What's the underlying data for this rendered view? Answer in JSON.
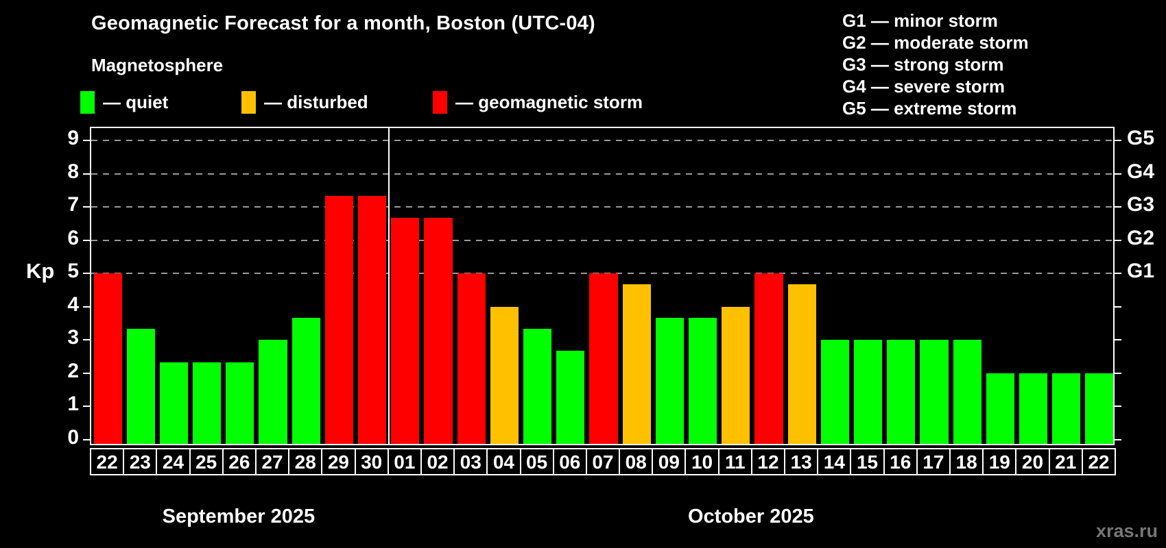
{
  "header": {
    "title": "Geomagnetic Forecast for a month, Boston (UTC-04)",
    "subtitle": "Magnetosphere"
  },
  "colors": {
    "quiet": "#00ff00",
    "disturbed": "#ffc000",
    "storm": "#ff0000",
    "background": "#000000",
    "text": "#ffffff",
    "gridline": "#9a9a9a",
    "watermark": "#777777"
  },
  "legend": {
    "quiet": "— quiet",
    "disturbed": "— disturbed",
    "storm": "— geomagnetic storm"
  },
  "storm_scale_legend": [
    "G1 — minor storm",
    "G2 — moderate storm",
    "G3 — strong storm",
    "G4 — severe storm",
    "G5 — extreme storm"
  ],
  "watermark": "xras.ru",
  "chart_data": {
    "type": "bar",
    "title": "Geomagnetic Forecast for a month, Boston (UTC-04)",
    "ylabel": "Kp",
    "ylim": [
      0,
      9
    ],
    "yticks": [
      0,
      1,
      2,
      3,
      4,
      5,
      6,
      7,
      8,
      9
    ],
    "gridlines_at": [
      5,
      6,
      7,
      8,
      9
    ],
    "grid": "dashed horizontal at G-storm levels only",
    "legend_position": "top-left",
    "right_axis": [
      {
        "kp": 5,
        "label": "G1"
      },
      {
        "kp": 6,
        "label": "G2"
      },
      {
        "kp": 7,
        "label": "G3"
      },
      {
        "kp": 8,
        "label": "G4"
      },
      {
        "kp": 9,
        "label": "G5"
      }
    ],
    "months": [
      {
        "label": "September 2025",
        "days": 9
      },
      {
        "label": "October 2025",
        "days": 22
      }
    ],
    "bars": [
      {
        "day": "22",
        "month": "September 2025",
        "kp": 5.0,
        "status": "storm"
      },
      {
        "day": "23",
        "month": "September 2025",
        "kp": 3.33,
        "status": "quiet"
      },
      {
        "day": "24",
        "month": "September 2025",
        "kp": 2.33,
        "status": "quiet"
      },
      {
        "day": "25",
        "month": "September 2025",
        "kp": 2.33,
        "status": "quiet"
      },
      {
        "day": "26",
        "month": "September 2025",
        "kp": 2.33,
        "status": "quiet"
      },
      {
        "day": "27",
        "month": "September 2025",
        "kp": 3.0,
        "status": "quiet"
      },
      {
        "day": "28",
        "month": "September 2025",
        "kp": 3.67,
        "status": "quiet"
      },
      {
        "day": "29",
        "month": "September 2025",
        "kp": 7.33,
        "status": "storm"
      },
      {
        "day": "30",
        "month": "September 2025",
        "kp": 7.33,
        "status": "storm"
      },
      {
        "day": "01",
        "month": "October 2025",
        "kp": 6.67,
        "status": "storm"
      },
      {
        "day": "02",
        "month": "October 2025",
        "kp": 6.67,
        "status": "storm"
      },
      {
        "day": "03",
        "month": "October 2025",
        "kp": 5.0,
        "status": "storm"
      },
      {
        "day": "04",
        "month": "October 2025",
        "kp": 4.0,
        "status": "disturbed"
      },
      {
        "day": "05",
        "month": "October 2025",
        "kp": 3.33,
        "status": "quiet"
      },
      {
        "day": "06",
        "month": "October 2025",
        "kp": 2.67,
        "status": "quiet"
      },
      {
        "day": "07",
        "month": "October 2025",
        "kp": 5.0,
        "status": "storm"
      },
      {
        "day": "08",
        "month": "October 2025",
        "kp": 4.67,
        "status": "disturbed"
      },
      {
        "day": "09",
        "month": "October 2025",
        "kp": 3.67,
        "status": "quiet"
      },
      {
        "day": "10",
        "month": "October 2025",
        "kp": 3.67,
        "status": "quiet"
      },
      {
        "day": "11",
        "month": "October 2025",
        "kp": 4.0,
        "status": "disturbed"
      },
      {
        "day": "12",
        "month": "October 2025",
        "kp": 5.0,
        "status": "storm"
      },
      {
        "day": "13",
        "month": "October 2025",
        "kp": 4.67,
        "status": "disturbed"
      },
      {
        "day": "14",
        "month": "October 2025",
        "kp": 3.0,
        "status": "quiet"
      },
      {
        "day": "15",
        "month": "October 2025",
        "kp": 3.0,
        "status": "quiet"
      },
      {
        "day": "16",
        "month": "October 2025",
        "kp": 3.0,
        "status": "quiet"
      },
      {
        "day": "17",
        "month": "October 2025",
        "kp": 3.0,
        "status": "quiet"
      },
      {
        "day": "18",
        "month": "October 2025",
        "kp": 3.0,
        "status": "quiet"
      },
      {
        "day": "19",
        "month": "October 2025",
        "kp": 2.0,
        "status": "quiet"
      },
      {
        "day": "20",
        "month": "October 2025",
        "kp": 2.0,
        "status": "quiet"
      },
      {
        "day": "21",
        "month": "October 2025",
        "kp": 2.0,
        "status": "quiet"
      },
      {
        "day": "22",
        "month": "October 2025",
        "kp": 2.0,
        "status": "quiet"
      }
    ]
  }
}
